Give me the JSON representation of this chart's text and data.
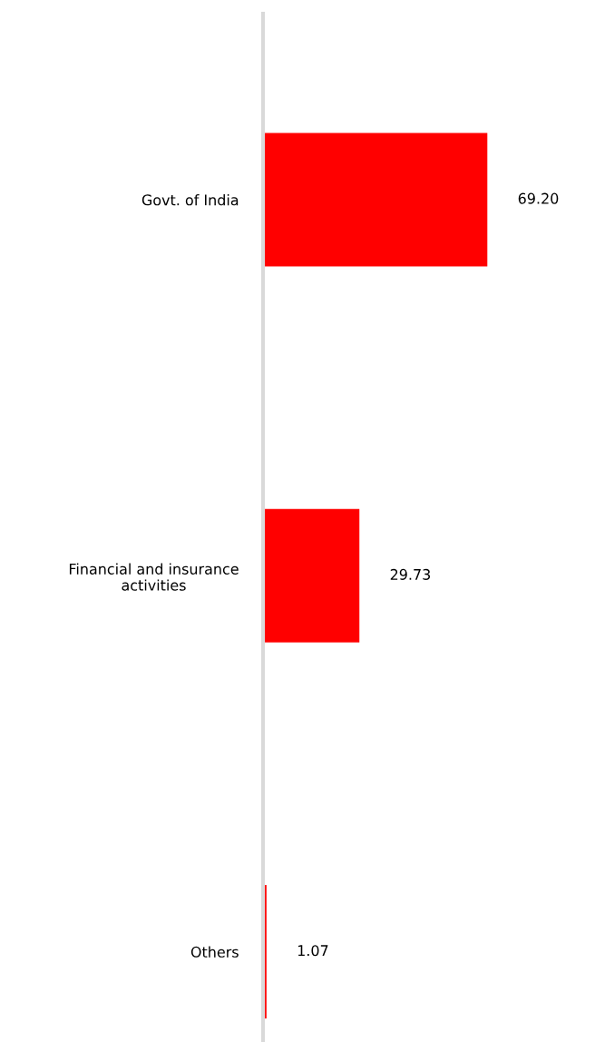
{
  "chart_data": {
    "type": "bar",
    "orientation": "horizontal",
    "categories": [
      "Govt. of India",
      "Financial and insurance\nactivities",
      "Others"
    ],
    "values": [
      69.2,
      29.73,
      1.07
    ],
    "value_labels": [
      "69.20",
      "29.73",
      "1.07"
    ],
    "color": "#ff0000",
    "tick_labels": "y",
    "grid": false,
    "legend": false
  }
}
